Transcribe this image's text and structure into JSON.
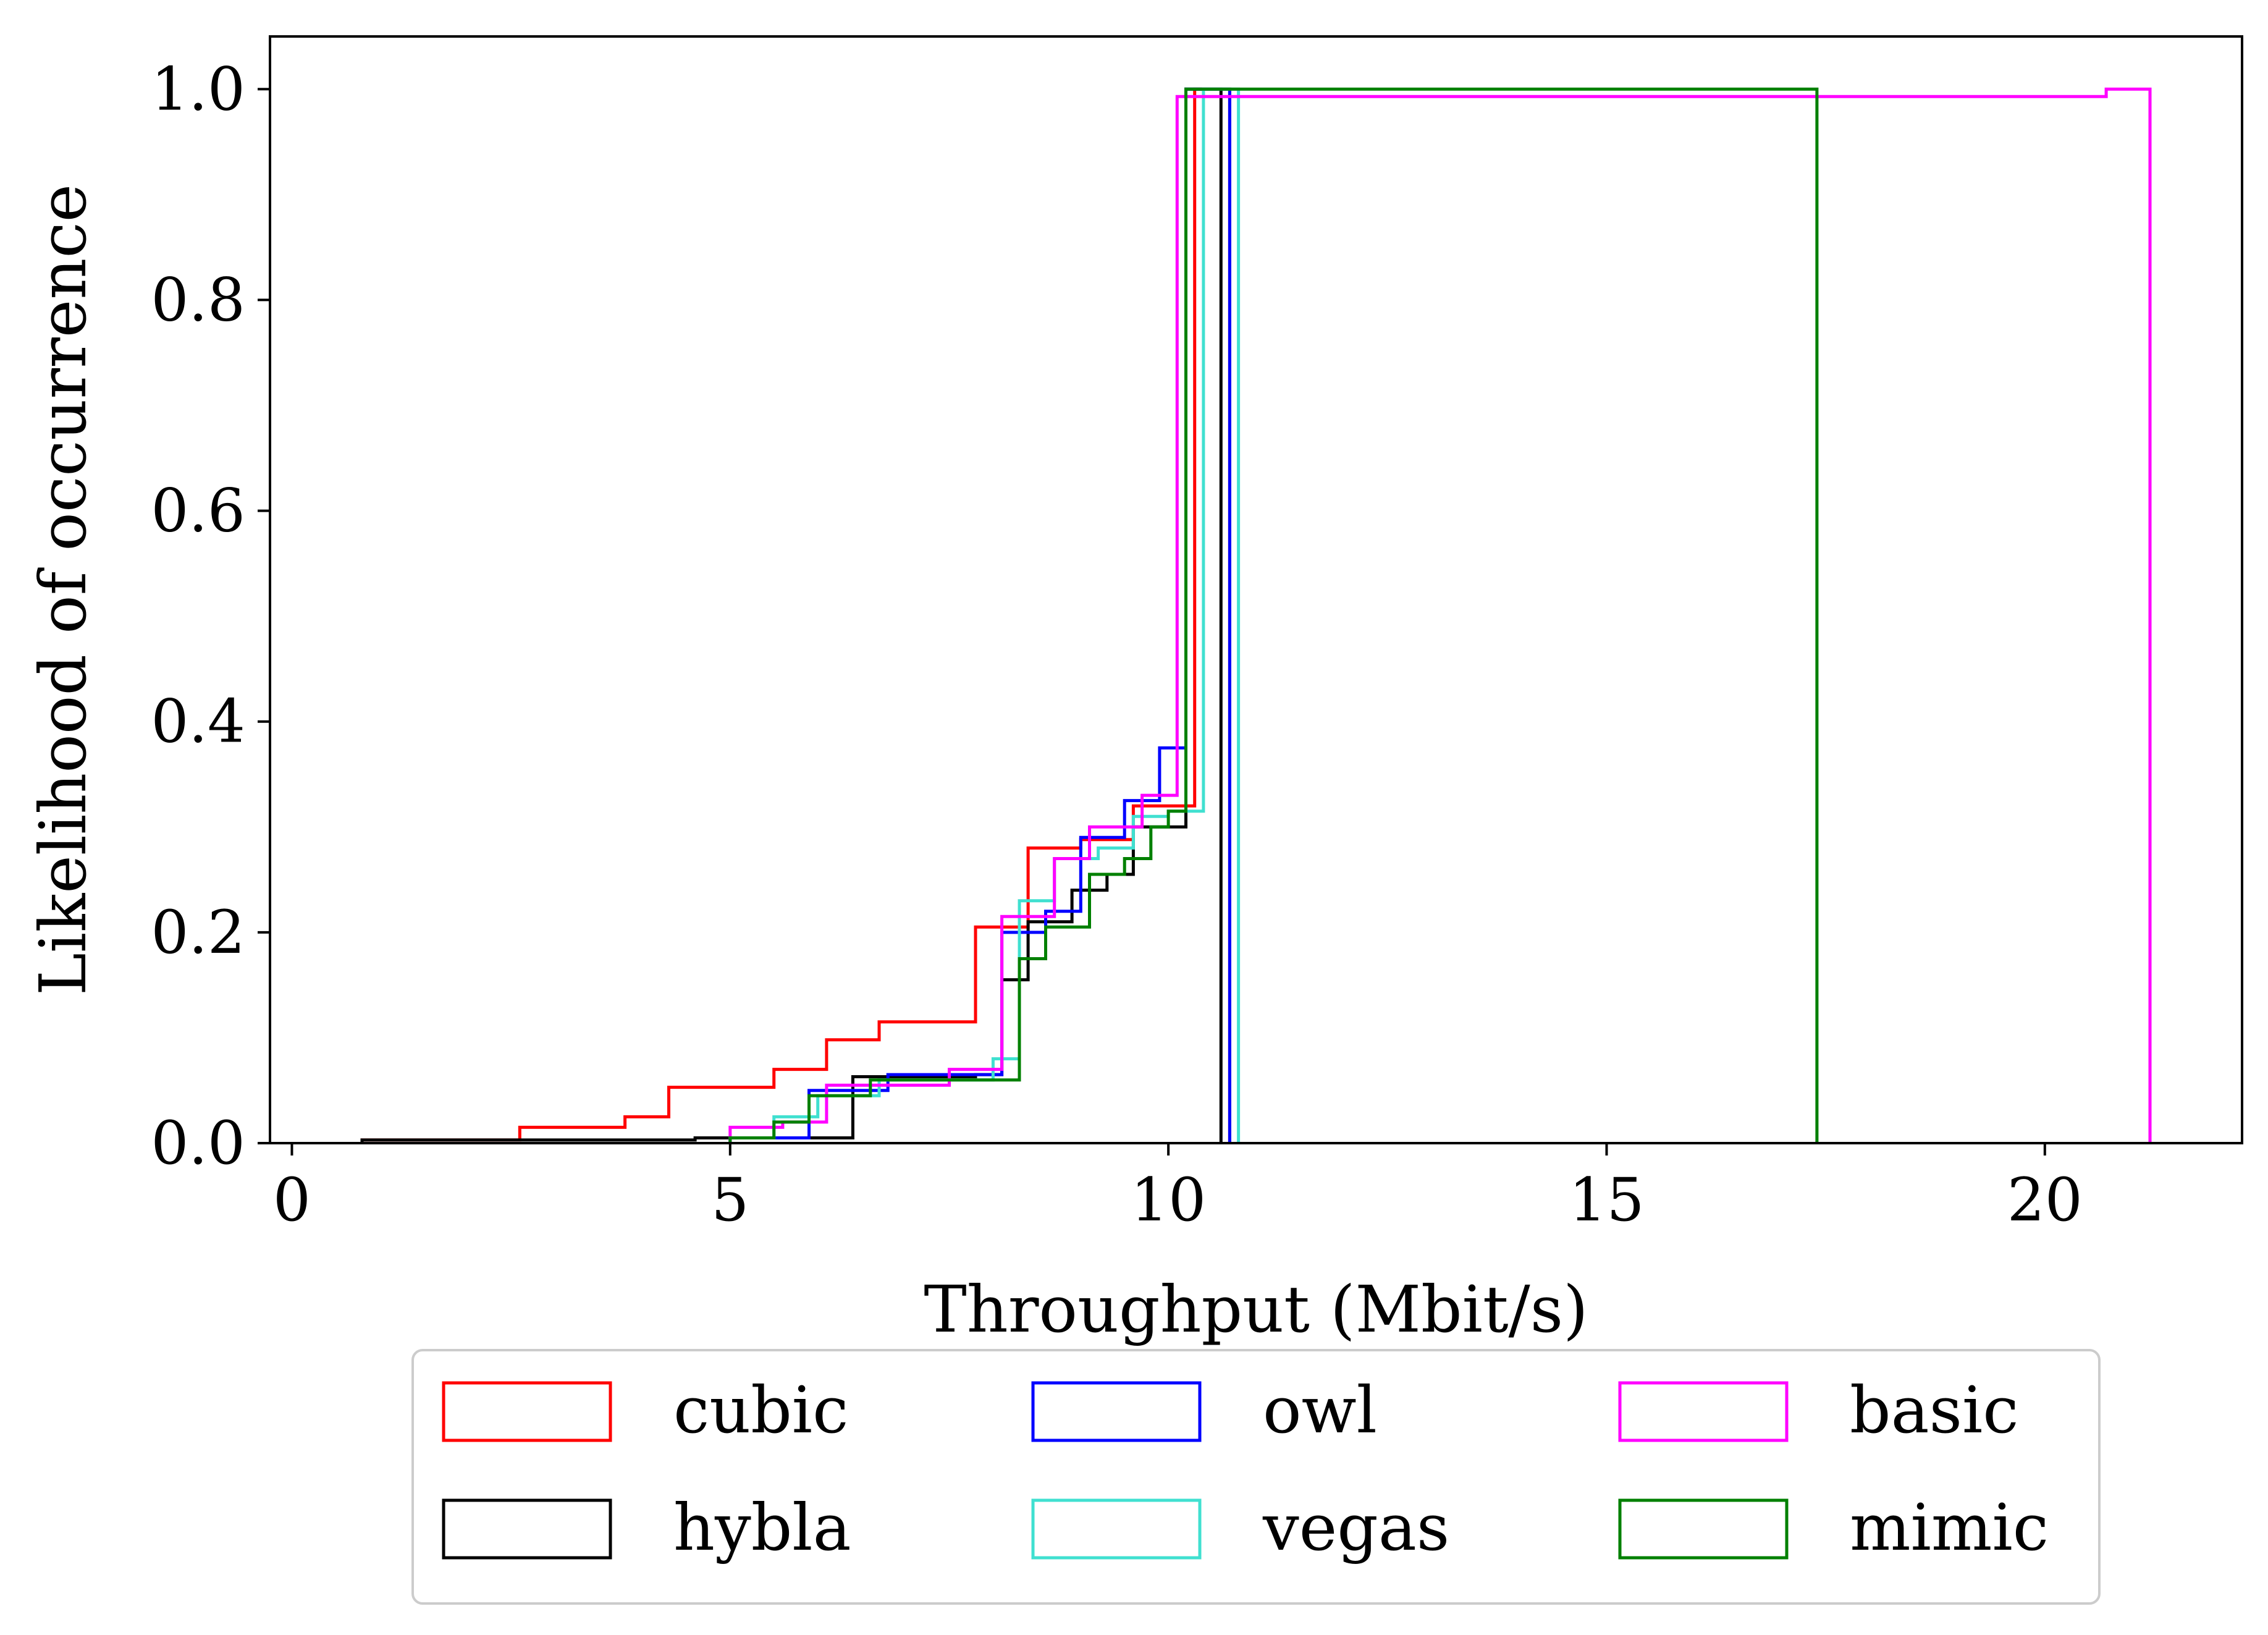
{
  "chart_data": {
    "type": "step-cdf",
    "title": "",
    "xlabel": "Throughput (Mbit/s)",
    "ylabel": "Likelihood of occurrence",
    "xlim": [
      -0.25,
      22.25
    ],
    "ylim": [
      0,
      1.05
    ],
    "xticks": [
      0,
      5,
      10,
      15,
      20
    ],
    "xtick_labels": [
      "0",
      "5",
      "10",
      "15",
      "20"
    ],
    "yticks": [
      0,
      0.2,
      0.4,
      0.6,
      0.8,
      1.0
    ],
    "ytick_labels": [
      "0.0",
      "0.2",
      "0.4",
      "0.6",
      "0.8",
      "1.0"
    ],
    "grid": false,
    "legend": {
      "position": "below",
      "columns": 3
    },
    "series": [
      {
        "name": "cubic",
        "color": "#ff0000",
        "points": [
          [
            0.8,
            0
          ],
          [
            0.8,
            0.003
          ],
          [
            2.6,
            0.003
          ],
          [
            2.6,
            0.015
          ],
          [
            3.8,
            0.015
          ],
          [
            3.8,
            0.025
          ],
          [
            4.3,
            0.025
          ],
          [
            4.3,
            0.053
          ],
          [
            5.5,
            0.053
          ],
          [
            5.5,
            0.07
          ],
          [
            6.1,
            0.07
          ],
          [
            6.1,
            0.098
          ],
          [
            6.7,
            0.098
          ],
          [
            6.7,
            0.115
          ],
          [
            7.8,
            0.115
          ],
          [
            7.8,
            0.205
          ],
          [
            8.4,
            0.205
          ],
          [
            8.4,
            0.28
          ],
          [
            9.0,
            0.28
          ],
          [
            9.0,
            0.288
          ],
          [
            9.6,
            0.288
          ],
          [
            9.6,
            0.32
          ],
          [
            10.3,
            0.32
          ],
          [
            10.3,
            1.0
          ],
          [
            10.7,
            1.0
          ],
          [
            10.7,
            0
          ]
        ]
      },
      {
        "name": "hybla",
        "color": "#000000",
        "points": [
          [
            0.8,
            0
          ],
          [
            0.8,
            0.003
          ],
          [
            4.6,
            0.003
          ],
          [
            4.6,
            0.005
          ],
          [
            6.4,
            0.005
          ],
          [
            6.4,
            0.063
          ],
          [
            7.8,
            0.063
          ],
          [
            7.8,
            0.065
          ],
          [
            8.1,
            0.065
          ],
          [
            8.1,
            0.155
          ],
          [
            8.4,
            0.155
          ],
          [
            8.4,
            0.21
          ],
          [
            8.9,
            0.21
          ],
          [
            8.9,
            0.24
          ],
          [
            9.3,
            0.24
          ],
          [
            9.3,
            0.255
          ],
          [
            9.6,
            0.255
          ],
          [
            9.6,
            0.3
          ],
          [
            10.2,
            0.3
          ],
          [
            10.2,
            1.0
          ],
          [
            10.6,
            1.0
          ],
          [
            10.6,
            0
          ]
        ]
      },
      {
        "name": "owl",
        "color": "#0000ff",
        "points": [
          [
            5.0,
            0
          ],
          [
            5.0,
            0.005
          ],
          [
            5.9,
            0.005
          ],
          [
            5.9,
            0.05
          ],
          [
            6.8,
            0.05
          ],
          [
            6.8,
            0.065
          ],
          [
            8.1,
            0.065
          ],
          [
            8.1,
            0.2
          ],
          [
            8.6,
            0.2
          ],
          [
            8.6,
            0.22
          ],
          [
            9.0,
            0.22
          ],
          [
            9.0,
            0.29
          ],
          [
            9.5,
            0.29
          ],
          [
            9.5,
            0.325
          ],
          [
            9.9,
            0.325
          ],
          [
            9.9,
            0.375
          ],
          [
            10.2,
            0.375
          ],
          [
            10.2,
            1.0
          ],
          [
            10.7,
            1.0
          ],
          [
            10.7,
            0
          ]
        ]
      },
      {
        "name": "vegas",
        "color": "#40e0d0",
        "points": [
          [
            5.0,
            0
          ],
          [
            5.0,
            0.005
          ],
          [
            5.5,
            0.005
          ],
          [
            5.5,
            0.025
          ],
          [
            6.0,
            0.025
          ],
          [
            6.0,
            0.045
          ],
          [
            6.7,
            0.045
          ],
          [
            6.7,
            0.06
          ],
          [
            8.0,
            0.06
          ],
          [
            8.0,
            0.08
          ],
          [
            8.3,
            0.08
          ],
          [
            8.3,
            0.23
          ],
          [
            8.7,
            0.23
          ],
          [
            8.7,
            0.27
          ],
          [
            9.2,
            0.27
          ],
          [
            9.2,
            0.28
          ],
          [
            9.6,
            0.28
          ],
          [
            9.6,
            0.31
          ],
          [
            10.0,
            0.31
          ],
          [
            10.0,
            0.315
          ],
          [
            10.4,
            0.315
          ],
          [
            10.4,
            1.0
          ],
          [
            10.8,
            1.0
          ],
          [
            10.8,
            0
          ]
        ]
      },
      {
        "name": "basic",
        "color": "#ff00ff",
        "points": [
          [
            5.0,
            0
          ],
          [
            5.0,
            0.015
          ],
          [
            5.6,
            0.015
          ],
          [
            5.6,
            0.02
          ],
          [
            6.1,
            0.02
          ],
          [
            6.1,
            0.055
          ],
          [
            7.5,
            0.055
          ],
          [
            7.5,
            0.07
          ],
          [
            8.1,
            0.07
          ],
          [
            8.1,
            0.215
          ],
          [
            8.7,
            0.215
          ],
          [
            8.7,
            0.27
          ],
          [
            9.1,
            0.27
          ],
          [
            9.1,
            0.3
          ],
          [
            9.7,
            0.3
          ],
          [
            9.7,
            0.33
          ],
          [
            10.1,
            0.33
          ],
          [
            10.1,
            0.993
          ],
          [
            20.7,
            0.993
          ],
          [
            20.7,
            1.0
          ],
          [
            21.2,
            1.0
          ],
          [
            21.2,
            0
          ]
        ]
      },
      {
        "name": "mimic",
        "color": "#008000",
        "points": [
          [
            5.0,
            0
          ],
          [
            5.0,
            0.005
          ],
          [
            5.5,
            0.005
          ],
          [
            5.5,
            0.02
          ],
          [
            5.9,
            0.02
          ],
          [
            5.9,
            0.045
          ],
          [
            6.6,
            0.045
          ],
          [
            6.6,
            0.06
          ],
          [
            8.3,
            0.06
          ],
          [
            8.3,
            0.175
          ],
          [
            8.6,
            0.175
          ],
          [
            8.6,
            0.205
          ],
          [
            9.1,
            0.205
          ],
          [
            9.1,
            0.255
          ],
          [
            9.5,
            0.255
          ],
          [
            9.5,
            0.27
          ],
          [
            9.8,
            0.27
          ],
          [
            9.8,
            0.3
          ],
          [
            10.0,
            0.3
          ],
          [
            10.0,
            0.315
          ],
          [
            10.2,
            0.315
          ],
          [
            10.2,
            1.0
          ],
          [
            17.4,
            1.0
          ],
          [
            17.4,
            0
          ]
        ]
      }
    ]
  }
}
